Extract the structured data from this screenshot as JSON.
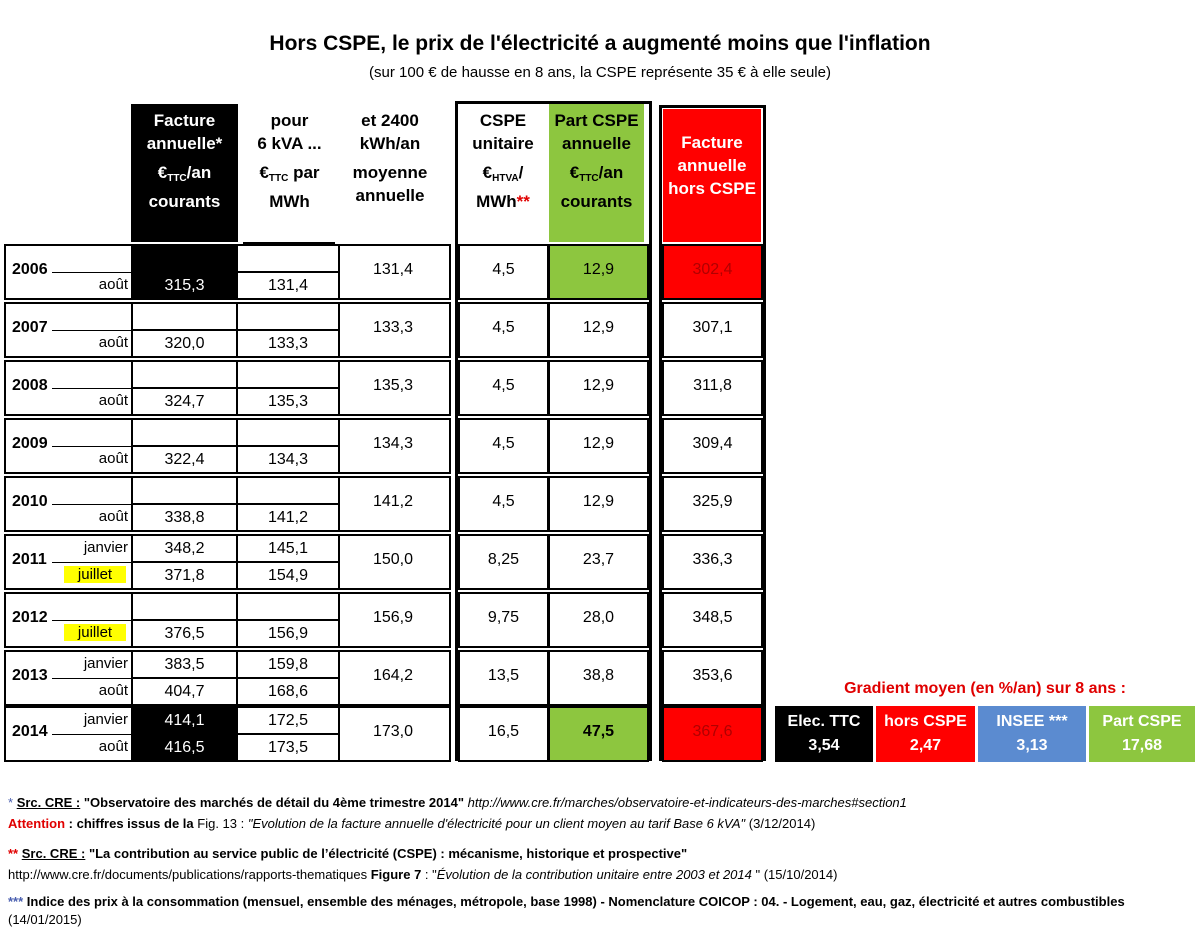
{
  "title": "Hors CSPE, le prix de l'électricité a augmenté moins que l'inflation",
  "subtitle": "(sur 100 € de hausse en 8 ans, la CSPE représente 35 € à elle seule)",
  "headers": {
    "c1a": "Facture",
    "c1b": "annuelle*",
    "c1c": "€",
    "c1c_sub": "TTC",
    "c1c_rest": "/an",
    "c1d": "courants",
    "c2a": "pour",
    "c2b": "6 kVA ...",
    "c2c": "€",
    "c2c_sub": "TTC",
    "c2c_rest": " par",
    "c2d": "MWh",
    "c3a": "et 2400",
    "c3b": "kWh/an",
    "c3c": "moyenne",
    "c3d": "annuelle",
    "c4a": "CSPE",
    "c4b": "unitaire",
    "c4c": "€",
    "c4c_sub": "HTVA",
    "c4c_rest": "/",
    "c4d": "MWh",
    "c4d_star": "**",
    "c5a": "Part CSPE",
    "c5b": "annuelle",
    "c5c": "€",
    "c5c_sub": "TTC",
    "c5c_rest": "/an",
    "c5d": "courants",
    "c6a": "Facture",
    "c6b": "annuelle",
    "c6c": "hors CSPE"
  },
  "rows": [
    {
      "year": "2006",
      "m1": "",
      "m2": "août",
      "f1": "",
      "f2": "315,3",
      "p1": "",
      "p2": "131,4",
      "avg": "131,4",
      "cspe": "4,5",
      "part": "12,9",
      "hors": "302,4"
    },
    {
      "year": "2007",
      "m1": "",
      "m2": "août",
      "f1": "",
      "f2": "320,0",
      "p1": "",
      "p2": "133,3",
      "avg": "133,3",
      "cspe": "4,5",
      "part": "12,9",
      "hors": "307,1"
    },
    {
      "year": "2008",
      "m1": "",
      "m2": "août",
      "f1": "",
      "f2": "324,7",
      "p1": "",
      "p2": "135,3",
      "avg": "135,3",
      "cspe": "4,5",
      "part": "12,9",
      "hors": "311,8"
    },
    {
      "year": "2009",
      "m1": "",
      "m2": "août",
      "f1": "",
      "f2": "322,4",
      "p1": "",
      "p2": "134,3",
      "avg": "134,3",
      "cspe": "4,5",
      "part": "12,9",
      "hors": "309,4"
    },
    {
      "year": "2010",
      "m1": "",
      "m2": "août",
      "f1": "",
      "f2": "338,8",
      "p1": "",
      "p2": "141,2",
      "avg": "141,2",
      "cspe": "4,5",
      "part": "12,9",
      "hors": "325,9"
    },
    {
      "year": "2011",
      "m1": "janvier",
      "m2": "juillet",
      "f1": "348,2",
      "f2": "371,8",
      "p1": "145,1",
      "p2": "154,9",
      "avg": "150,0",
      "cspe": "8,25",
      "part": "23,7",
      "hors": "336,3"
    },
    {
      "year": "2012",
      "m1": "",
      "m2": "juillet",
      "f1": "",
      "f2": "376,5",
      "p1": "",
      "p2": "156,9",
      "avg": "156,9",
      "cspe": "9,75",
      "part": "28,0",
      "hors": "348,5"
    },
    {
      "year": "2013",
      "m1": "janvier",
      "m2": "août",
      "f1": "383,5",
      "f2": "404,7",
      "p1": "159,8",
      "p2": "168,6",
      "avg": "164,2",
      "cspe": "13,5",
      "part": "38,8",
      "hors": "353,6"
    },
    {
      "year": "2014",
      "m1": "janvier",
      "m2": "août",
      "f1": "414,1",
      "f2": "416,5",
      "p1": "172,5",
      "p2": "173,5",
      "avg": "173,0",
      "cspe": "16,5",
      "part": "47,5",
      "hors": "367,6"
    }
  ],
  "gradient": {
    "title": "Gradient moyen (en %/an) sur 8 ans :",
    "items": [
      {
        "label": "Elec. TTC",
        "value": "3,54",
        "color": "#000000"
      },
      {
        "label": "hors CSPE",
        "value": "2,47",
        "color": "#ff0000"
      },
      {
        "label": "INSEE ***",
        "value": "3,13",
        "color": "#5b8bd0"
      },
      {
        "label": "Part CSPE",
        "value": "17,68",
        "color": "#8dc63f"
      }
    ]
  },
  "footnotes": {
    "f1_star": "*",
    "f1_src": "Src. CRE :",
    "f1_title": " \"Observatoire des marchés de détail du 4ème trimestre 2014\" ",
    "f1_url": "http://www.cre.fr/marches/observatoire-et-indicateurs-des-marches#section1",
    "f2_att": "Attention",
    "f2_a": " : chiffres issus de la ",
    "f2_fig": "Fig. 13 : ",
    "f2_it": "\"Evolution de la facture annuelle d'électricité pour un client moyen au tarif Base 6 kVA\"",
    "f2_date": "  (3/12/2014)",
    "f3_star": "**",
    "f3_src": "Src. CRE :",
    "f3_title": " \"La contribution au service public de l’électricité (CSPE) : mécanisme, historique et prospective\"",
    "f4_url": "http://www.cre.fr/documents/publications/rapports-thematiques  ",
    "f4_fig": "Figure 7",
    "f4_a": " : \"",
    "f4_it": "Évolution de la contribution unitaire entre 2003 et 2014",
    "f4_b": " \" (15/10/2014)",
    "f5_star": "***",
    "f5_text": " Indice des prix à la consommation (mensuel, ensemble des ménages, métropole, base 1998) - Nomenclature COICOP : 04. - Logement, eau, gaz, électricité et autres combustibles",
    "f5_date": " (14/01/2015)"
  },
  "colors": {
    "green": "#8dc63f",
    "red": "#ff0000",
    "blue": "#5b8bd0",
    "yellow": "#ffff00"
  }
}
